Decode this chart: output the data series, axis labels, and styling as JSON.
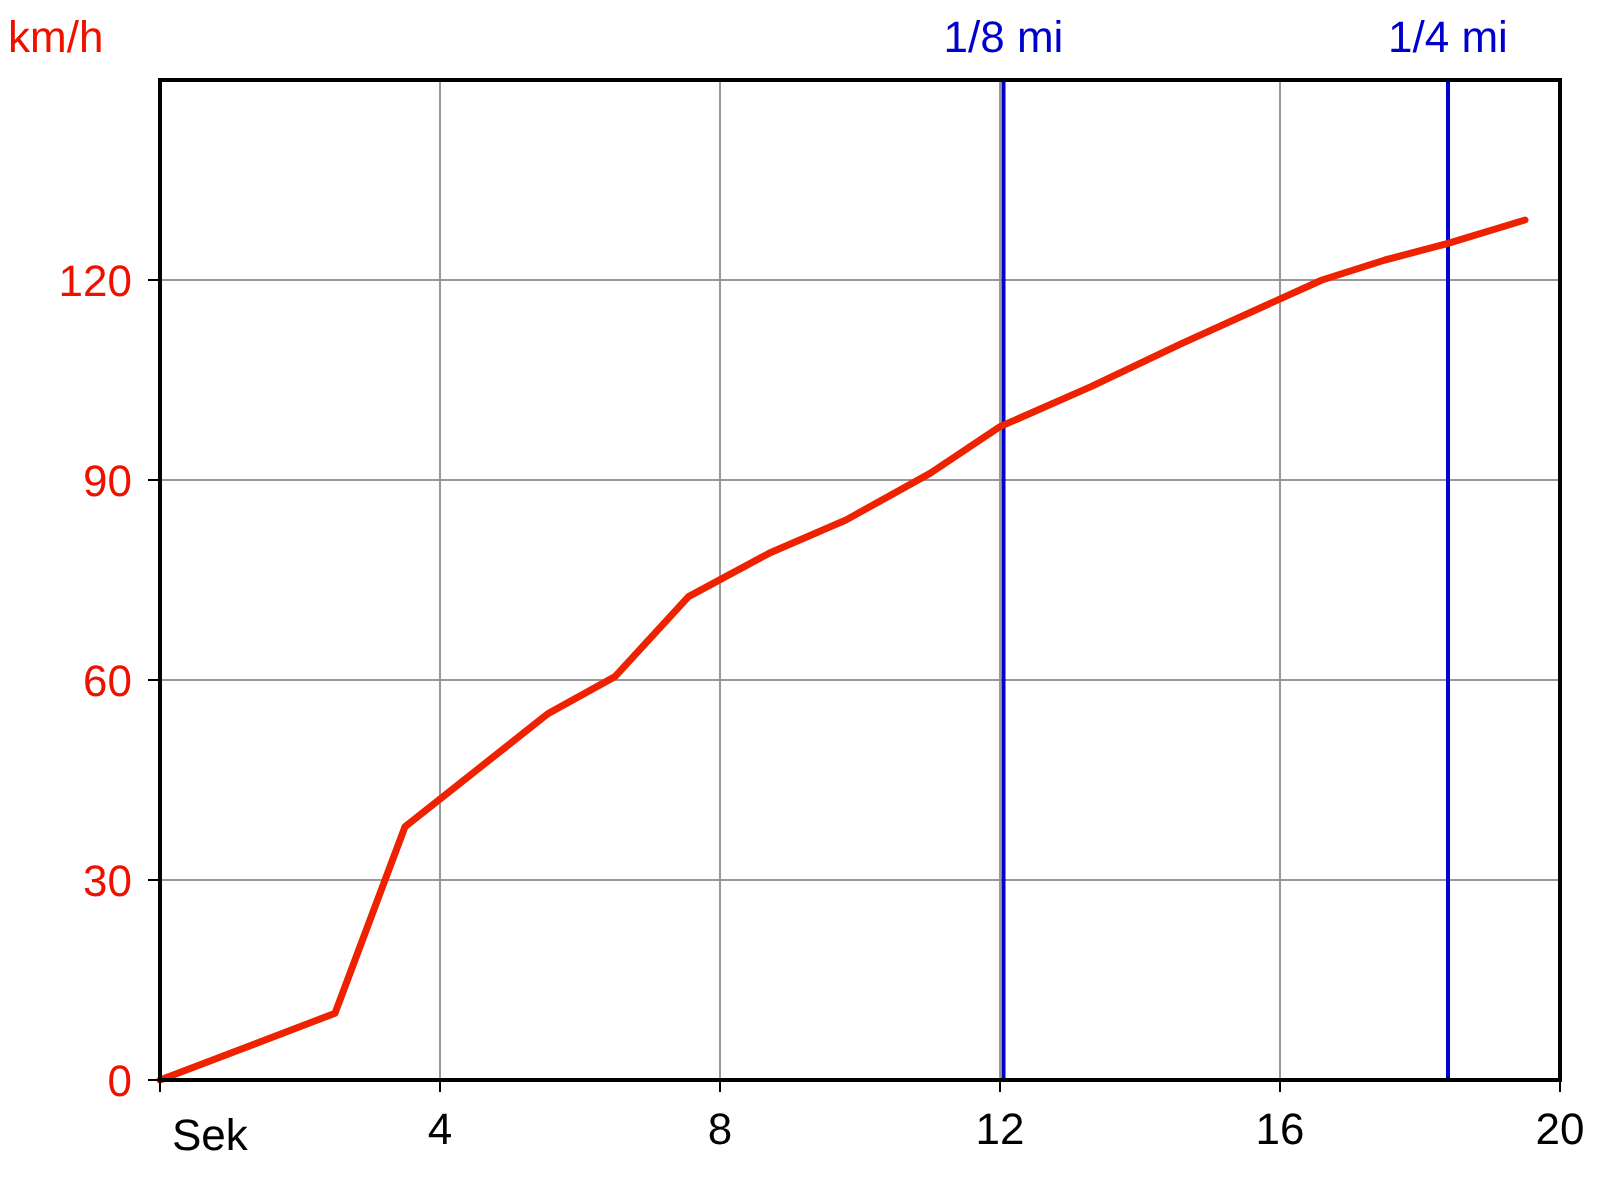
{
  "chart_data": {
    "type": "line",
    "xlabel": "Sek",
    "ylabel": "km/h",
    "x": [
      0,
      2.5,
      3.5,
      5.55,
      6.5,
      7.55,
      8.7,
      9.8,
      11,
      12,
      13.3,
      14.6,
      16.6,
      17.5,
      18.4,
      19.5
    ],
    "series": [
      {
        "color": "#ee2200",
        "values": [
          0,
          10,
          38,
          55,
          60.5,
          72.5,
          79,
          84,
          91,
          98,
          104,
          110.5,
          120,
          123,
          125.5,
          129
        ]
      }
    ],
    "xlim": [
      0,
      20
    ],
    "xticks": [
      {
        "value": 0,
        "label": null
      },
      4,
      8,
      12,
      16,
      20
    ],
    "ylim": [
      0,
      150
    ],
    "yticks": [
      0,
      30,
      60,
      90,
      120
    ],
    "grid": true,
    "ref_lines": [
      {
        "axis": "x",
        "value": 12.05,
        "label": "1/8 mi",
        "color": "#0000cc"
      },
      {
        "axis": "x",
        "value": 18.4,
        "label": "1/4 mi",
        "color": "#0000cc"
      }
    ]
  }
}
